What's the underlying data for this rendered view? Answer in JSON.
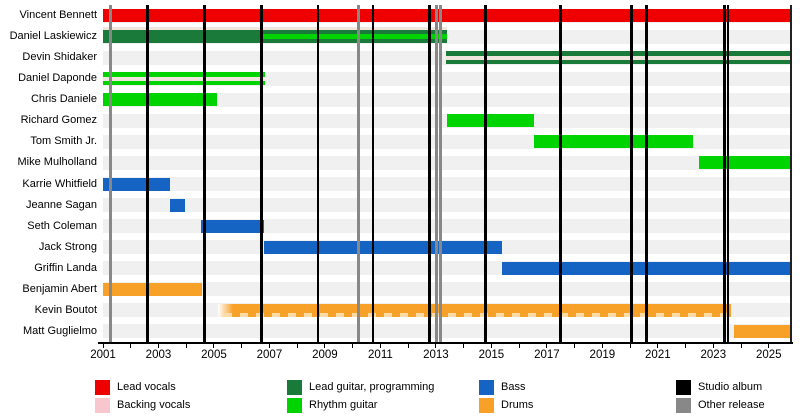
{
  "colors": {
    "lead_vocals": "#ee0000",
    "backing_vocals": "#f7c6ce",
    "lead_guitar": "#1a7a3a",
    "rhythm_guitar": "#00d400",
    "bass": "#1563c2",
    "drums": "#f8a129",
    "studio_album": "#000000",
    "other_release": "#888888",
    "stripe_pale": "#f0e6dd",
    "dash_pale": "#fcdca6",
    "lane_track": "#f0f0f0"
  },
  "chart_data": {
    "type": "timeline",
    "x_axis": {
      "min": 2001,
      "max": 2025.8,
      "minor_tick_step": 1,
      "tick_labels": [
        "2001",
        "2003",
        "2005",
        "2007",
        "2009",
        "2011",
        "2013",
        "2015",
        "2017",
        "2019",
        "2021",
        "2023",
        "2025"
      ]
    },
    "members": [
      {
        "name": "Vincent Bennett",
        "bars": [
          {
            "role": "Lead vocals",
            "color": "lead_vocals",
            "from": 2001,
            "till": 2025.8
          }
        ]
      },
      {
        "name": "Daniel Laskiewicz",
        "bars": [
          {
            "role": "Lead guitar, programming",
            "color": "lead_guitar",
            "from": 2001,
            "till": 2013.4
          }
        ],
        "stripes": [
          {
            "role": "Backing vocals",
            "color": "stripe_pale",
            "pos": "above",
            "from": 2001,
            "till": 2013.4
          },
          {
            "role": "Rhythm guitar",
            "color": "rhythm_guitar",
            "pos": "mid",
            "h": 5,
            "from": 2006.75,
            "till": 2013.4
          }
        ]
      },
      {
        "name": "Devin Shidaker",
        "bars": [
          {
            "role": "Lead guitar, programming",
            "color": "lead_guitar",
            "from": 2013.35,
            "till": 2025.8
          }
        ],
        "stripes": [
          {
            "role": "Backing vocals",
            "color": "stripe_pale",
            "pos": "mid",
            "h": 4,
            "from": 2013.35,
            "till": 2025.8
          }
        ]
      },
      {
        "name": "Daniel Daponde",
        "bars": [
          {
            "role": "Rhythm guitar",
            "color": "rhythm_guitar",
            "from": 2001,
            "till": 2006.85
          }
        ],
        "stripes": [
          {
            "role": "Backing vocals",
            "color": "stripe_pale",
            "pos": "mid",
            "h": 4,
            "from": 2001,
            "till": 2006.85
          }
        ]
      },
      {
        "name": "Chris Daniele",
        "bars": [
          {
            "role": "Rhythm guitar",
            "color": "rhythm_guitar",
            "from": 2001,
            "till": 2005.1
          }
        ]
      },
      {
        "name": "Richard Gomez",
        "bars": [
          {
            "role": "Rhythm guitar",
            "color": "rhythm_guitar",
            "from": 2013.4,
            "till": 2016.55
          }
        ]
      },
      {
        "name": "Tom Smith Jr.",
        "bars": [
          {
            "role": "Rhythm guitar",
            "color": "rhythm_guitar",
            "from": 2016.55,
            "till": 2022.25
          }
        ]
      },
      {
        "name": "Mike Mulholland",
        "bars": [
          {
            "role": "Rhythm guitar",
            "color": "rhythm_guitar",
            "from": 2022.5,
            "till": 2025.8
          }
        ]
      },
      {
        "name": "Karrie Whitfield",
        "bars": [
          {
            "role": "Bass",
            "color": "bass",
            "from": 2001,
            "till": 2003.4
          }
        ]
      },
      {
        "name": "Jeanne Sagan",
        "bars": [
          {
            "role": "Bass",
            "color": "bass",
            "from": 2003.4,
            "till": 2003.95
          }
        ]
      },
      {
        "name": "Seth Coleman",
        "bars": [
          {
            "role": "Bass",
            "color": "bass",
            "from": 2004.55,
            "till": 2006.82
          }
        ]
      },
      {
        "name": "Jack Strong",
        "bars": [
          {
            "role": "Bass",
            "color": "bass",
            "from": 2006.82,
            "till": 2015.38
          }
        ]
      },
      {
        "name": "Griffin Landa",
        "bars": [
          {
            "role": "Bass",
            "color": "bass",
            "from": 2015.38,
            "till": 2025.8
          }
        ]
      },
      {
        "name": "Benjamin Abert",
        "bars": [
          {
            "role": "Drums",
            "color": "drums",
            "from": 2001,
            "till": 2004.58
          }
        ]
      },
      {
        "name": "Kevin Boutot",
        "bars": [
          {
            "role": "Drums",
            "color": "drums",
            "from": 2005.15,
            "till": 2023.65,
            "fade_left": true,
            "dashed_bottom": true
          }
        ]
      },
      {
        "name": "Matt Guglielmo",
        "bars": [
          {
            "role": "Drums",
            "color": "drums",
            "from": 2023.75,
            "till": 2025.8
          }
        ]
      }
    ],
    "events": [
      {
        "year": 2001.25,
        "type": "Other release"
      },
      {
        "year": 2002.6,
        "type": "Studio album"
      },
      {
        "year": 2004.67,
        "type": "Studio album"
      },
      {
        "year": 2006.72,
        "type": "Studio album"
      },
      {
        "year": 2008.75,
        "type": "Studio album"
      },
      {
        "year": 2010.2,
        "type": "Other release"
      },
      {
        "year": 2010.73,
        "type": "Studio album"
      },
      {
        "year": 2012.78,
        "type": "Studio album"
      },
      {
        "year": 2013.03,
        "type": "Other release"
      },
      {
        "year": 2013.18,
        "type": "Other release"
      },
      {
        "year": 2014.8,
        "type": "Studio album"
      },
      {
        "year": 2017.5,
        "type": "Studio album"
      },
      {
        "year": 2020.05,
        "type": "Studio album"
      },
      {
        "year": 2020.6,
        "type": "Studio album"
      },
      {
        "year": 2023.4,
        "type": "Studio album"
      },
      {
        "year": 2023.53,
        "type": "Studio album"
      }
    ]
  },
  "legend": {
    "items": [
      {
        "label": "Lead vocals",
        "color_key": "lead_vocals",
        "col": 0,
        "row": 0
      },
      {
        "label": "Backing vocals",
        "color_key": "backing_vocals",
        "col": 0,
        "row": 1
      },
      {
        "label": "Lead guitar, programming",
        "color_key": "lead_guitar",
        "col": 1,
        "row": 0
      },
      {
        "label": "Rhythm guitar",
        "color_key": "rhythm_guitar",
        "col": 1,
        "row": 1
      },
      {
        "label": "Bass",
        "color_key": "bass",
        "col": 2,
        "row": 0
      },
      {
        "label": "Drums",
        "color_key": "drums",
        "col": 2,
        "row": 1
      },
      {
        "label": "Studio album",
        "color_key": "studio_album",
        "col": 3,
        "row": 0
      },
      {
        "label": "Other release",
        "color_key": "other_release",
        "col": 3,
        "row": 1
      }
    ]
  }
}
